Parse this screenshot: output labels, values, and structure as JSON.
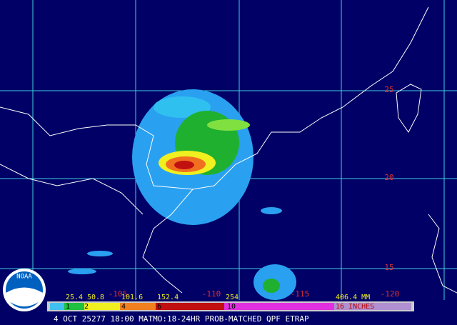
{
  "grid": {
    "latitude_labels": [
      "25",
      "20",
      "15"
    ],
    "longitude_labels": [
      "-105",
      "-110",
      "-115",
      "-120"
    ]
  },
  "logo": "NOAA",
  "legend": {
    "mm_labels": [
      "25.4",
      "50.8",
      "101.6",
      "152.4",
      "254",
      "406.4 MM"
    ],
    "inch_labels": [
      "1",
      "2",
      "4",
      "6",
      "10",
      "16 INCHES"
    ]
  },
  "footer": "4 OCT 25277 18:00 MATMO:18-24HR PROB-MATCHED QPF ETRAP"
}
